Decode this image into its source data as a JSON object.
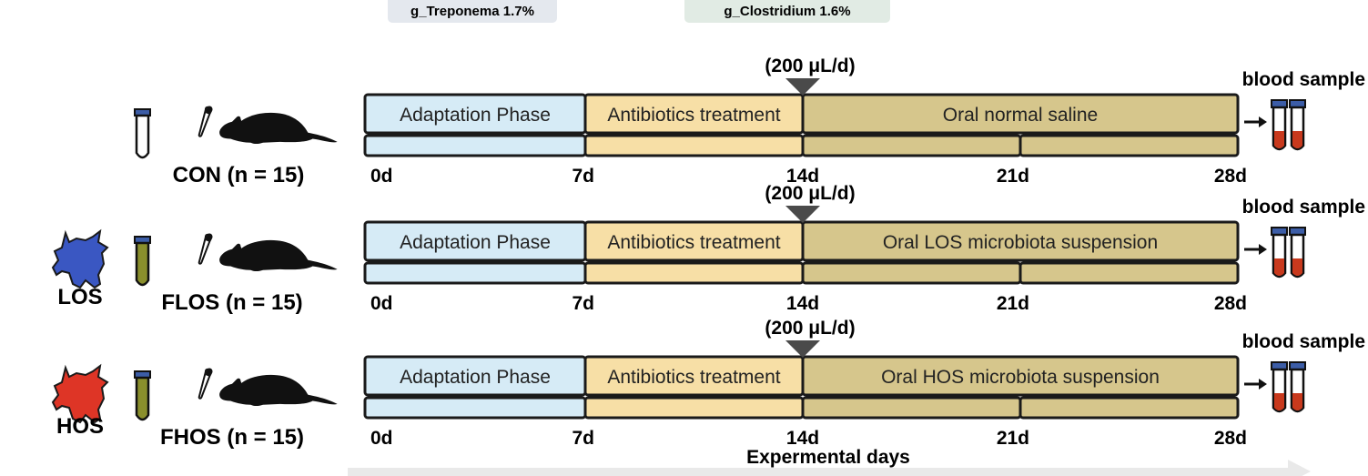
{
  "top_tags": [
    {
      "text": "g_Treponema 1.7%",
      "color": "#e4e8ee"
    },
    {
      "text": "g_Clostridium 1.6%",
      "color": "#e1ebe4"
    }
  ],
  "colors": {
    "adaptation": "#d6ebf6",
    "antibiotics": "#f7dfa6",
    "oral": "#d6c68c",
    "outline": "#1a1a1a",
    "blood_red": "#c8391d",
    "cap_blue": "#3c5da7",
    "los_animal": "#3a57c2",
    "hos_animal": "#de3526",
    "suspension_tube": "#8a8f2c"
  },
  "groups": [
    {
      "id": "con",
      "source_label": "",
      "group_label": "CON (n = 15)",
      "dose": "(200 μL/d)",
      "blood_label": "blood sample",
      "tube": "empty",
      "phases": [
        "Adaptation Phase",
        "Antibiotics treatment",
        "Oral normal saline"
      ],
      "days": [
        "0d",
        "7d",
        "14d",
        "21d",
        "28d"
      ]
    },
    {
      "id": "flos",
      "source_label": "LOS",
      "group_label": "FLOS (n = 15)",
      "dose": "(200 μL/d)",
      "blood_label": "blood sample",
      "tube": "suspension",
      "phases": [
        "Adaptation Phase",
        "Antibiotics treatment",
        "Oral LOS microbiota suspension"
      ],
      "days": [
        "0d",
        "7d",
        "14d",
        "21d",
        "28d"
      ]
    },
    {
      "id": "fhos",
      "source_label": "HOS",
      "group_label": "FHOS (n = 15)",
      "dose": "(200 μL/d)",
      "blood_label": "blood sample",
      "tube": "suspension",
      "phases": [
        "Adaptation Phase",
        "Antibiotics treatment",
        "Oral HOS microbiota suspension"
      ],
      "days": [
        "0d",
        "7d",
        "14d",
        "21d",
        "28d"
      ]
    }
  ],
  "x_axis_label": "Expermental days",
  "icons": [
    "cow-icon",
    "test-tube-icon",
    "pipette-icon",
    "mouse-icon",
    "blood-tube-icon",
    "right-arrow-icon"
  ]
}
